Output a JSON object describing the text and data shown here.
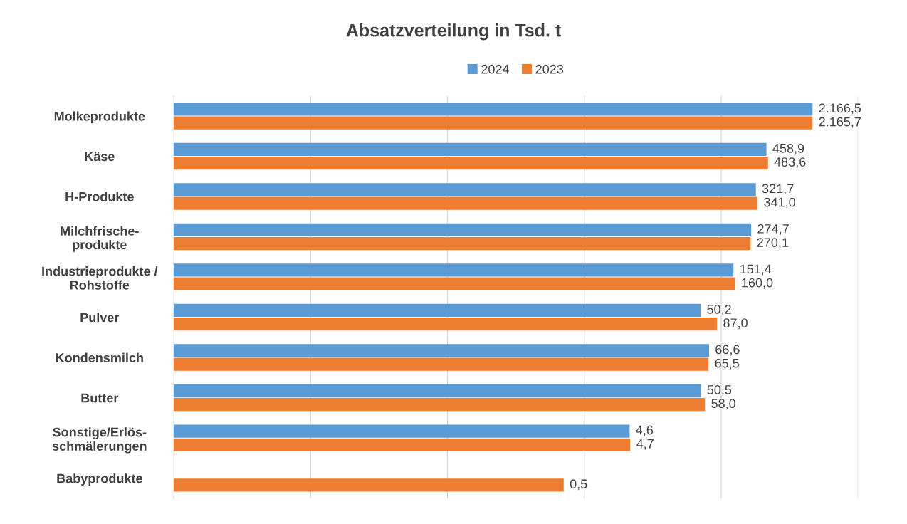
{
  "chart_data": {
    "type": "bar",
    "orientation": "horizontal",
    "title": "Absatzverteilung in Tsd. t",
    "categories": [
      "Molkeprodukte",
      "Käse",
      "H-Produkte",
      "Milchfrische-\nprodukte",
      "Industrieprodukte /\nRohstoffe",
      "Pulver",
      "Kondensmilch",
      "Butter",
      "Sonstige/Erlös-\nschmälerungen",
      "Babyprodukte"
    ],
    "series": [
      {
        "name": "2024",
        "color": "#5b9bd5",
        "values": [
          2166.5,
          458.9,
          321.7,
          274.7,
          151.4,
          50.2,
          66.6,
          50.5,
          4.6,
          null
        ],
        "value_labels": [
          "2.166,5",
          "458,9",
          "321,7",
          "274,7",
          "151,4",
          "50,2",
          "66,6",
          "50,5",
          "4,6",
          null
        ]
      },
      {
        "name": "2023",
        "color": "#ed7d31",
        "values": [
          2165.7,
          483.6,
          341.0,
          270.1,
          160.0,
          87.0,
          65.5,
          58.0,
          4.7,
          0.5
        ],
        "value_labels": [
          "2.165,7",
          "483,6",
          "341,0",
          "270,1",
          "160,0",
          "87,0",
          "65,5",
          "58,0",
          "4,7",
          "0,5"
        ]
      }
    ],
    "log": "x",
    "xlim": [
      1e-06,
      10000
    ],
    "xticks": [
      {
        "value": 1e-06,
        "label": null
      },
      {
        "value": 0.0001,
        "label": null
      },
      {
        "value": 0.01,
        "label": null
      },
      {
        "value": 1,
        "label": null
      },
      {
        "value": 100,
        "label": null
      },
      {
        "value": 10000,
        "label": null
      }
    ],
    "grid": "x",
    "legend": "top",
    "tick_labels": "y"
  }
}
